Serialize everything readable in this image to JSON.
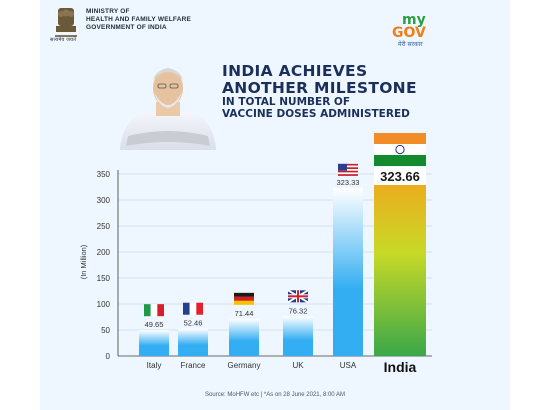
{
  "header": {
    "ministry": [
      "MINISTRY OF",
      "HEALTH AND FAMILY WELFARE",
      "GOVERNMENT OF INDIA"
    ],
    "emblem_caption": "सत्यमेव जयते",
    "logo_top": "my",
    "logo_bottom": "GOV",
    "logo_tagline": "मेरी सरकार"
  },
  "headline": {
    "line1": "INDIA ACHIEVES",
    "line2": "ANOTHER MILESTONE",
    "sub1": "IN TOTAL NUMBER OF",
    "sub2": "VACCINE DOSES ADMINISTERED"
  },
  "footer": {
    "source": "Source: MoHFW etc   |   *As on 28 June 2021, 8:00 AM"
  },
  "colors": {
    "bar_top": "#ffffff",
    "bar_bottom": "#34aef2",
    "india_top": "#f4a21d",
    "india_mid": "#c8d927",
    "india_bottom": "#3aa848",
    "axis": "#3a3a3a",
    "grid": "#b9cfe6"
  },
  "chart_data": {
    "type": "bar",
    "categories": [
      "Italy",
      "France",
      "Germany",
      "UK",
      "USA",
      "India"
    ],
    "values": [
      49.65,
      52.46,
      71.44,
      76.32,
      323.33,
      323.66
    ],
    "value_labels": [
      "49.65",
      "52.46",
      "71.44",
      "76.32",
      "323.33",
      "323.66"
    ],
    "flags": [
      "italy-flag",
      "france-flag",
      "germany-flag",
      "uk-flag",
      "usa-flag",
      "india-flag"
    ],
    "ylabel": "(In Million)",
    "ylim": [
      0,
      350
    ],
    "yticks": [
      0,
      50,
      100,
      150,
      200,
      250,
      300,
      350
    ],
    "grid": true,
    "highlight": "India"
  }
}
